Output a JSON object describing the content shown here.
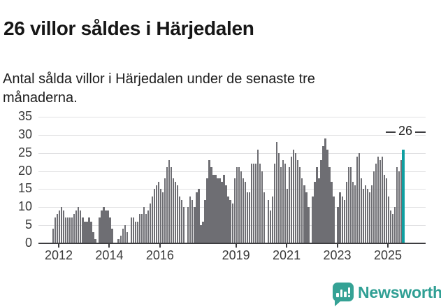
{
  "header": {
    "title": "26 villor såldes i Härjedalen",
    "subtitle": "Antal sålda villor i Härjedalen under de senaste tre månaderna."
  },
  "chart_data": {
    "type": "bar",
    "title": "26 villor såldes i Härjedalen",
    "subtitle": "Antal sålda villor i Härjedalen under de senaste tre månaderna.",
    "x_start": "2011-10",
    "x_end": "2025-08",
    "x_interval": "month",
    "values": [
      4,
      7,
      8,
      9,
      10,
      9,
      7,
      7,
      7,
      7,
      8,
      9,
      10,
      9,
      7,
      6,
      6,
      7,
      6,
      3,
      1,
      0,
      7,
      9,
      10,
      9,
      9,
      7,
      4,
      0,
      0,
      1,
      2,
      4,
      5,
      3,
      0,
      7,
      7,
      6,
      6,
      8,
      8,
      10,
      8,
      9,
      11,
      13,
      15,
      16,
      17,
      15,
      14,
      18,
      21,
      23,
      21,
      18,
      17,
      16,
      13,
      12,
      10,
      0,
      10,
      13,
      12,
      10,
      14,
      15,
      5,
      6,
      12,
      18,
      23,
      21,
      19,
      19,
      18,
      18,
      17,
      19,
      16,
      13,
      12,
      11,
      18,
      21,
      21,
      20,
      18,
      17,
      14,
      14,
      22,
      22,
      22,
      26,
      22,
      20,
      14,
      0,
      12,
      9,
      13,
      22,
      28,
      25,
      21,
      23,
      22,
      15,
      21,
      24,
      26,
      25,
      23,
      21,
      18,
      16,
      14,
      10,
      0,
      13,
      17,
      21,
      18,
      23,
      27,
      29,
      26,
      21,
      17,
      13,
      0,
      10,
      14,
      13,
      12,
      17,
      21,
      21,
      17,
      16,
      24,
      25,
      18,
      15,
      16,
      15,
      14,
      16,
      20,
      22,
      24,
      23,
      24,
      19,
      18,
      13,
      9,
      8,
      10,
      21,
      20,
      23,
      26
    ],
    "highlight_last_value": 26,
    "annotation_last": "26",
    "yticks": [
      0,
      5,
      10,
      15,
      20,
      25,
      30,
      35
    ],
    "ylim": [
      0,
      36
    ],
    "xtick_years": [
      2012,
      2014,
      2016,
      2019,
      2021,
      2023,
      2025
    ],
    "grid": "horizontal",
    "legend": "none",
    "bar_color": "#6e6e73",
    "highlight_color": "#0f9fa1"
  },
  "footer": {
    "brand": "Newsworthy"
  }
}
